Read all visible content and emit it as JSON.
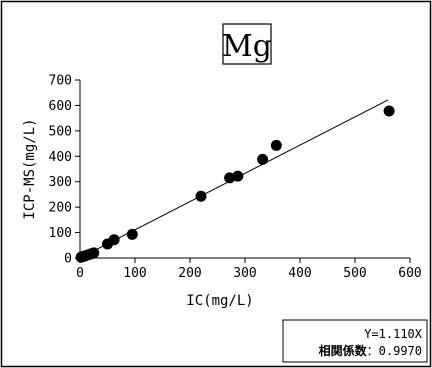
{
  "chart_data": {
    "type": "scatter",
    "title": "Mg",
    "xlabel": "IC(mg/L)",
    "ylabel": "ICP-MS(mg/L)",
    "xlim": [
      0,
      600
    ],
    "ylim": [
      0,
      700
    ],
    "xticks": [
      0,
      100,
      200,
      300,
      400,
      500,
      600
    ],
    "yticks": [
      0,
      100,
      200,
      300,
      400,
      500,
      600,
      700
    ],
    "grid": false,
    "legend": "none",
    "points": [
      {
        "x": 2,
        "y": 3
      },
      {
        "x": 5,
        "y": 6
      },
      {
        "x": 9,
        "y": 8
      },
      {
        "x": 14,
        "y": 12
      },
      {
        "x": 20,
        "y": 16
      },
      {
        "x": 25,
        "y": 20
      },
      {
        "x": 50,
        "y": 55
      },
      {
        "x": 62,
        "y": 72
      },
      {
        "x": 95,
        "y": 93
      },
      {
        "x": 220,
        "y": 243
      },
      {
        "x": 272,
        "y": 315
      },
      {
        "x": 287,
        "y": 322
      },
      {
        "x": 332,
        "y": 388
      },
      {
        "x": 357,
        "y": 443
      },
      {
        "x": 562,
        "y": 578
      }
    ],
    "fit": {
      "slope": 1.11,
      "intercept": 0,
      "x_range": [
        0,
        560
      ]
    },
    "annotation": {
      "equation": "Y=1.110X",
      "corr_label": "相関係数",
      "corr_value": "：0.9970"
    }
  }
}
